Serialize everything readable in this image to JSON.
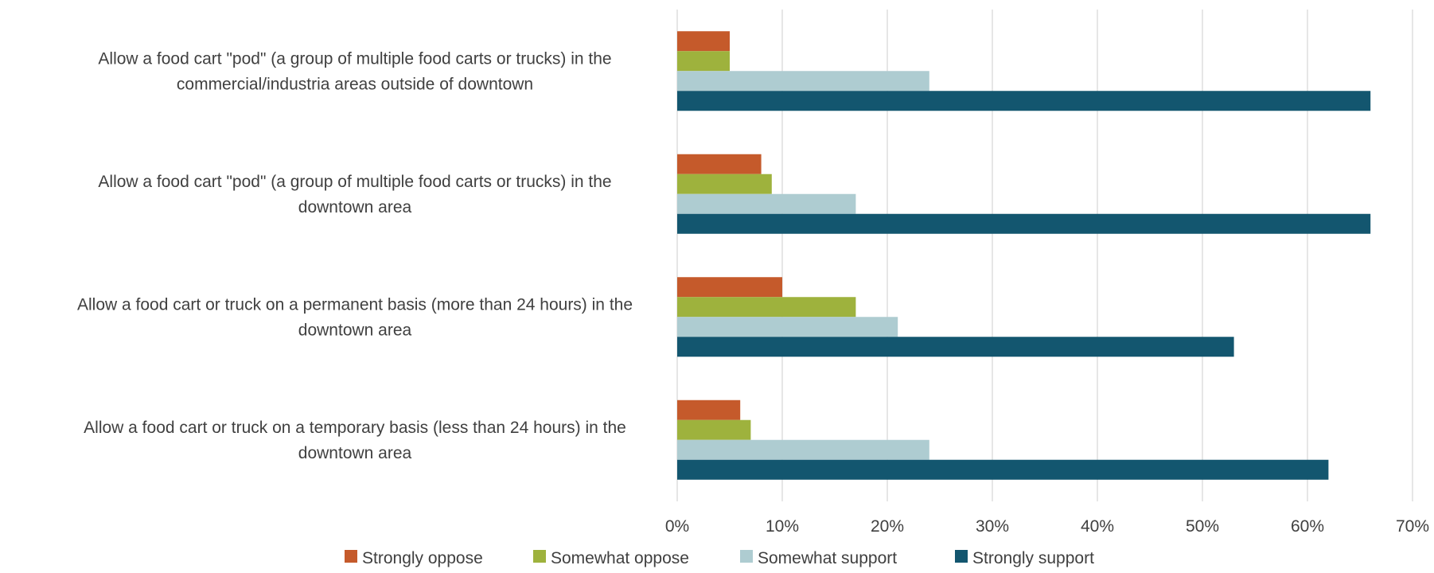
{
  "chart_data": {
    "type": "bar",
    "orientation": "horizontal",
    "title": "",
    "xlabel": "",
    "ylabel": "",
    "categories": [
      [
        "Allow a food cart \"pod\" (a group of multiple food carts or trucks) in the",
        "commercial/industria areas outside of downtown"
      ],
      [
        "Allow a food cart \"pod\" (a group of multiple food carts or trucks) in the",
        "downtown area"
      ],
      [
        "Allow a food cart or truck on a permanent basis (more than 24 hours) in the",
        "downtown area"
      ],
      [
        "Allow a food cart or truck on a temporary basis (less than 24 hours) in the",
        "downtown area"
      ]
    ],
    "series": [
      {
        "name": "Strongly oppose",
        "color": "#C55A2B",
        "values": [
          5,
          8,
          10,
          6
        ]
      },
      {
        "name": "Somewhat oppose",
        "color": "#9EB23D",
        "values": [
          5,
          9,
          17,
          7
        ]
      },
      {
        "name": "Somewhat support",
        "color": "#AECCD1",
        "values": [
          24,
          17,
          21,
          24
        ]
      },
      {
        "name": "Strongly support",
        "color": "#13566F",
        "values": [
          66,
          66,
          53,
          62
        ]
      }
    ],
    "xlim": [
      0,
      70
    ],
    "ticks": [
      0,
      10,
      20,
      30,
      40,
      50,
      60,
      70
    ],
    "tick_labels": [
      "0%",
      "10%",
      "20%",
      "30%",
      "40%",
      "50%",
      "60%",
      "70%"
    ],
    "grid": true,
    "legend_position": "bottom"
  }
}
